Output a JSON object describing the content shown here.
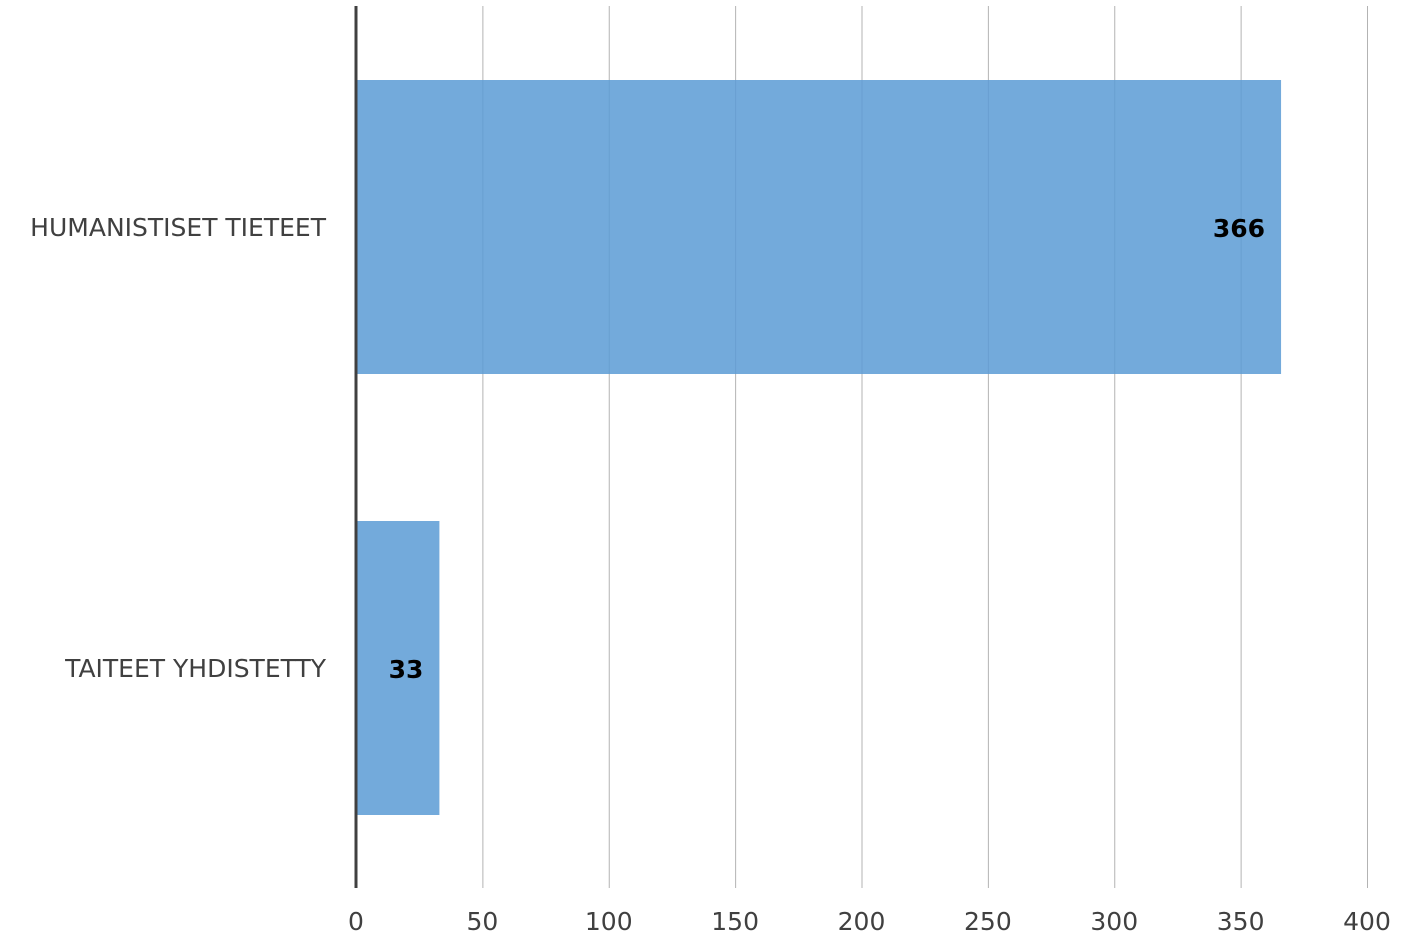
{
  "chart_data": {
    "type": "bar",
    "orientation": "horizontal",
    "categories": [
      "HUMANISTISET TIETEET",
      "TAITEET YHDISTETTY"
    ],
    "values": [
      366,
      33
    ],
    "data_labels": [
      "366",
      "33"
    ],
    "xlim": [
      0,
      400
    ],
    "x_ticks": [
      0,
      50,
      100,
      150,
      200,
      250,
      300,
      350,
      400
    ],
    "title": "",
    "xlabel": "",
    "ylabel": "",
    "grid": "vertical",
    "legend": "none",
    "colors": {
      "bar": "#5b9bd5",
      "grid": "#b3b3b3",
      "axis": "#404040",
      "text": "#404040",
      "data_label": "#000000"
    }
  }
}
